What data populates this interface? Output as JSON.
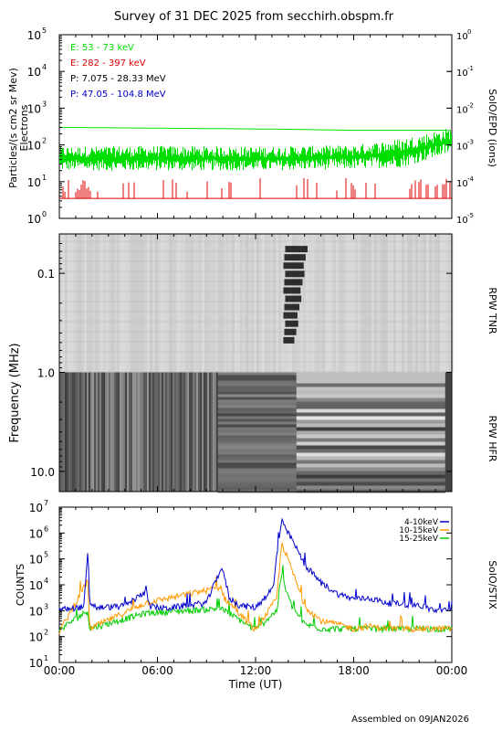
{
  "title": "Survey of 31 DEC 2025 from secchirh.obspm.fr",
  "footer": "Assembled on 09JAN2026",
  "chart_data": [
    {
      "type": "line",
      "panel": "epd",
      "ylabel": "Particles/(s cm2 sr Mev)",
      "ylabel2": "Electrons",
      "right_label": "SolO/EPD (ions)",
      "yscale": "log",
      "ylim": [
        1,
        100000
      ],
      "yticks": [
        "10",
        "10",
        "10",
        "10",
        "10",
        "10"
      ],
      "ytick_exp": [
        "0",
        "1",
        "2",
        "3",
        "4",
        "5"
      ],
      "y2lim": [
        1e-05,
        1
      ],
      "y2ticks": [
        "10",
        "10",
        "10",
        "10",
        "10"
      ],
      "y2tick_exp": [
        "-5",
        "-4",
        "-3",
        "-2",
        "-1",
        "0"
      ],
      "y2ticks_full": [
        [
          "10",
          "-5"
        ],
        [
          "10",
          "-4"
        ],
        [
          "10",
          "-3"
        ],
        [
          "10",
          "-2"
        ],
        [
          "10",
          "-1"
        ],
        [
          "10",
          "0"
        ]
      ],
      "legend": [
        {
          "label": "E: 53 - 73 keV",
          "color": "#00dd00"
        },
        {
          "label": "E: 282 - 397 keV",
          "color": "#dd0000"
        },
        {
          "label": "P: 7.075 - 28.33 MeV",
          "color": "#000000"
        },
        {
          "label": "P: 47.05 - 104.8 MeV",
          "color": "#0000cc"
        }
      ],
      "series": [
        {
          "name": "E: 53 - 73 keV",
          "color": "#00dd00",
          "x": [
            0,
            6,
            12,
            18,
            21,
            24
          ],
          "lower": [
            20,
            20,
            20,
            22,
            25,
            60
          ],
          "upper": [
            90,
            95,
            90,
            100,
            150,
            300
          ]
        },
        {
          "name": "E: 282 - 397 keV",
          "color": "#dd0000",
          "x": [
            0,
            24
          ],
          "values": [
            5,
            5
          ]
        },
        {
          "name": "threshold",
          "color": "#00dd00",
          "x": [
            0,
            13,
            18,
            20,
            24
          ],
          "values": [
            300,
            270,
            250,
            250,
            250
          ]
        }
      ]
    },
    {
      "type": "heatmap",
      "panel": "rpw",
      "ylabel": "Frequency (MHz)",
      "yscale": "log",
      "ylim": [
        0.04,
        16
      ],
      "yticks": [
        "0.1",
        "1.0",
        "10.0"
      ],
      "right_labels": [
        "RPW TNR",
        "RPW HFR"
      ],
      "bursts": [
        {
          "x": [
            13.7,
            14.4
          ],
          "y": [
            0.5,
            0.06
          ]
        }
      ]
    },
    {
      "type": "line",
      "panel": "stix",
      "ylabel": "COUNTS",
      "right_label": "SolO/STIX",
      "yscale": "log",
      "ylim": [
        10,
        10000000
      ],
      "yticks": [
        "10",
        "10",
        "10",
        "10",
        "10",
        "10",
        "10"
      ],
      "ytick_exp": [
        "1",
        "2",
        "3",
        "4",
        "5",
        "6",
        "7"
      ],
      "xlabel": "Time (UT)",
      "xticks": [
        "00:00",
        "06:00",
        "12:00",
        "18:00",
        "00:00"
      ],
      "xlim": [
        0,
        24
      ],
      "series": [
        {
          "name": "4-10keV",
          "color": "#0000cc",
          "x": [
            0,
            1.5,
            1.75,
            1.85,
            2.3,
            4,
            5.2,
            5.3,
            5.5,
            6.5,
            7.8,
            9,
            9.9,
            10.1,
            10.4,
            11,
            12,
            13.1,
            13.3,
            13.6,
            13.8,
            14.2,
            15,
            16,
            17,
            18,
            19,
            20,
            21,
            22,
            23,
            24
          ],
          "values": [
            1100,
            1400,
            200000,
            2000,
            1300,
            1500,
            5000,
            10000,
            1500,
            1200,
            1600,
            2000,
            45000,
            20000,
            3000,
            1600,
            1300,
            8000,
            150000,
            3000000,
            1500000,
            600000,
            60000,
            12000,
            4500,
            2800,
            3000,
            2000,
            1800,
            1600,
            1000,
            1000
          ]
        },
        {
          "name": "10-15keV",
          "color": "#ff9900",
          "x": [
            0,
            1.75,
            1.85,
            5.3,
            9.9,
            10.1,
            12,
            13.3,
            13.6,
            13.8,
            14.2,
            15,
            16,
            17,
            18,
            19,
            20,
            22,
            24
          ],
          "values": [
            150,
            15000,
            200,
            2000,
            8000,
            3000,
            170,
            3000,
            400000,
            200000,
            40000,
            1500,
            400,
            300,
            200,
            250,
            200,
            200,
            200
          ]
        },
        {
          "name": "15-25keV",
          "color": "#00cc00",
          "x": [
            0,
            1.75,
            1.85,
            5.3,
            9.9,
            12,
            13.3,
            13.6,
            13.8,
            14.2,
            15,
            16,
            18,
            24
          ],
          "values": [
            180,
            1000,
            200,
            800,
            1200,
            180,
            1000,
            30000,
            8000,
            1500,
            300,
            200,
            200,
            200
          ]
        }
      ]
    }
  ]
}
